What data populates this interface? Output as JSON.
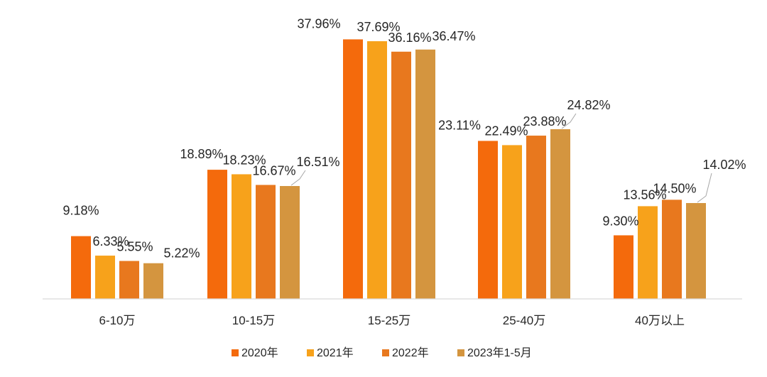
{
  "chart_data": {
    "type": "bar",
    "title": "",
    "xlabel": "",
    "ylabel": "",
    "ylim": [
      0,
      40
    ],
    "grid": false,
    "legend_position": "bottom",
    "categories": [
      "6-10万",
      "10-15万",
      "15-25万",
      "25-40万",
      "40万以上"
    ],
    "series": [
      {
        "name": "2020年",
        "color": "#F46A0C",
        "values": [
          9.18,
          18.89,
          37.96,
          23.11,
          9.3
        ],
        "labels": [
          "9.18%",
          "18.89%",
          "37.96%",
          "23.11%",
          "9.30%"
        ]
      },
      {
        "name": "2021年",
        "color": "#F7A21B",
        "values": [
          6.33,
          18.23,
          37.69,
          22.49,
          13.56
        ],
        "labels": [
          "6.33%",
          "18.23%",
          "37.69%",
          "22.49%",
          "13.56%"
        ]
      },
      {
        "name": "2022年",
        "color": "#E8781E",
        "values": [
          5.55,
          16.67,
          36.16,
          23.88,
          14.5
        ],
        "labels": [
          "5.55%",
          "16.67%",
          "36.16%",
          "23.88%",
          "14.50%"
        ]
      },
      {
        "name": "2023年1-5月",
        "color": "#D4953F",
        "values": [
          5.22,
          16.51,
          36.47,
          24.82,
          14.02
        ],
        "labels": [
          "5.22%",
          "16.51%",
          "36.47%",
          "24.82%",
          "14.02%"
        ]
      }
    ]
  }
}
